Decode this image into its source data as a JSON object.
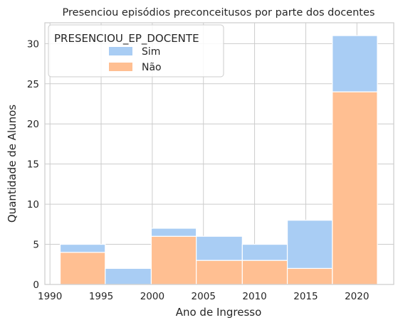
{
  "chart_data": {
    "type": "bar",
    "stacked": true,
    "title": "Presenciou episódios preconceitusos por parte dos docentes",
    "xlabel": "Ano de Ingresso",
    "ylabel": "Quantidade de Alunos",
    "xlim": [
      1989.5,
      2023.6
    ],
    "ylim": [
      0,
      32.6
    ],
    "xticks": [
      1990,
      1995,
      2000,
      2005,
      2010,
      2015,
      2020
    ],
    "yticks": [
      0,
      5,
      10,
      15,
      20,
      25,
      30
    ],
    "bins": [
      [
        1991,
        1995.4
      ],
      [
        1995.4,
        1999.9
      ],
      [
        1999.9,
        2004.3
      ],
      [
        2004.3,
        2008.8
      ],
      [
        2008.8,
        2013.2
      ],
      [
        2013.2,
        2017.6
      ],
      [
        2017.6,
        2022
      ]
    ],
    "grid": true,
    "legend": {
      "title": "PRESENCIOU_EP_DOCENTE",
      "placement": "top-left"
    },
    "series": [
      {
        "name": "Não",
        "color": "#ffbf92",
        "values": [
          4,
          0,
          6,
          3,
          3,
          2,
          24
        ]
      },
      {
        "name": "Sim",
        "color": "#a9cdf4",
        "values": [
          1,
          2,
          1,
          3,
          2,
          6,
          7
        ]
      }
    ]
  }
}
